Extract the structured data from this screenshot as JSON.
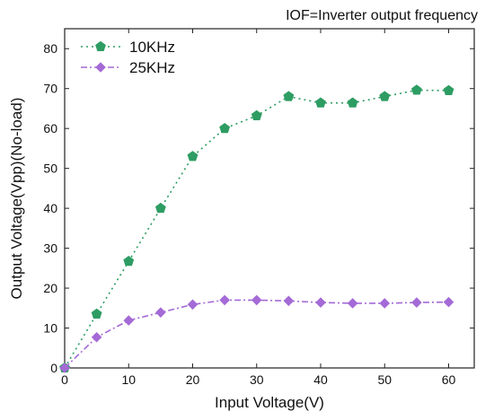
{
  "chart_data": {
    "type": "line",
    "title": "",
    "annotation": "IOF=Inverter output frequency",
    "xlabel": "Input Voltage(V)",
    "ylabel": "Output Voltage(Vpp)(No-load)",
    "xlim": [
      0,
      64
    ],
    "ylim": [
      0,
      85
    ],
    "xticks": [
      0,
      10,
      20,
      30,
      40,
      50,
      60
    ],
    "yticks": [
      0,
      10,
      20,
      30,
      40,
      50,
      60,
      70,
      80
    ],
    "grid": false,
    "legend_position": "top-left",
    "series": [
      {
        "name": "10KHz",
        "color": "#2e9d63",
        "marker": "pentagon",
        "line_style": "dotted",
        "x": [
          0,
          5,
          10,
          15,
          20,
          25,
          30,
          35,
          40,
          45,
          50,
          55,
          60
        ],
        "values": [
          0,
          13.5,
          26.7,
          40,
          53,
          60,
          63.2,
          68,
          66.4,
          66.4,
          68,
          69.6,
          69.5
        ]
      },
      {
        "name": "25KHz",
        "color": "#a46ad6",
        "marker": "diamond",
        "line_style": "dash-dot",
        "x": [
          0,
          5,
          10,
          15,
          20,
          25,
          30,
          35,
          40,
          45,
          50,
          55,
          60
        ],
        "values": [
          0,
          7.7,
          11.9,
          13.9,
          15.9,
          17,
          17,
          16.8,
          16.4,
          16.2,
          16.2,
          16.4,
          16.5
        ]
      }
    ]
  }
}
